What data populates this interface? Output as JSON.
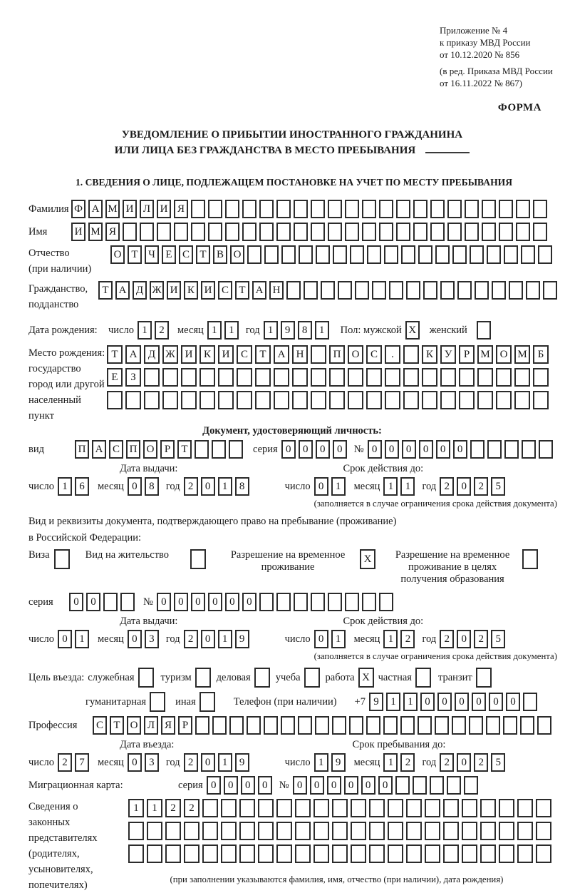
{
  "header": {
    "annex_lines": [
      "Приложение № 4",
      "к приказу МВД России",
      "от 10.12.2020 № 856"
    ],
    "edit_lines": [
      "(в ред. Приказа МВД России",
      "от 16.11.2022 № 867)"
    ],
    "form_label": "ФОРМА"
  },
  "title": {
    "line1": "УВЕДОМЛЕНИЕ О ПРИБЫТИИ ИНОСТРАННОГО ГРАЖДАНИНА",
    "line2": "ИЛИ ЛИЦА БЕЗ ГРАЖДАНСТВА В МЕСТО ПРЕБЫВАНИЯ"
  },
  "section1": {
    "heading": "1. СВЕДЕНИЯ О ЛИЦЕ, ПОДЛЕЖАЩЕМ ПОСТАНОВКЕ НА УЧЕТ ПО МЕСТУ ПРЕБЫВАНИЯ"
  },
  "date_words": {
    "day": "число",
    "month": "месяц",
    "year": "год"
  },
  "fields": {
    "surname": {
      "label": "Фамилия",
      "cells": "ФАМИЛИЯ",
      "total": 28
    },
    "name": {
      "label": "Имя",
      "cells": "ИМЯ",
      "total": 28
    },
    "patronymic": {
      "label": "Отчество",
      "label2": "(при наличии)",
      "cells": "ОТЧЕСТВО",
      "total": 26
    },
    "citizenship": {
      "label": "Гражданство,",
      "label2": "подданство",
      "cells": "ТАДЖИКИСТАН",
      "total": 27
    },
    "birth_date": {
      "label": "Дата рождения:",
      "day": "12",
      "month": "11",
      "year": "1981",
      "sex_label": "Пол: мужской",
      "male_box": "X",
      "female_label": "женский",
      "female_box": " "
    },
    "birth_place": {
      "label_lines": [
        "Место рождения:",
        "государство",
        "город или другой",
        "населенный пункт"
      ],
      "rows": [
        {
          "cells": "ТАДЖИКИСТАН ПОС. КУРМОМБ",
          "total": 24
        },
        {
          "cells": "ЕЗ",
          "total": 24
        },
        {
          "cells": "",
          "total": 24
        }
      ]
    }
  },
  "id_doc": {
    "heading": "Документ, удостоверяющий личность:",
    "kind_label": "вид",
    "kind": {
      "cells": "ПАСПОРТ",
      "total": 10
    },
    "series_label": "серия",
    "series": "0000",
    "number_label": "№",
    "number": {
      "cells": "000000",
      "total": 11
    },
    "issue_label": "Дата выдачи:",
    "issue": {
      "day": "16",
      "month": "08",
      "year": "2018"
    },
    "valid_label": "Срок действия до:",
    "valid": {
      "day": "01",
      "month": "11",
      "year": "2025"
    },
    "note": "(заполняется в случае ограничения срока действия документа)"
  },
  "res_doc": {
    "intro1": "Вид и реквизиты документа, подтверждающего право на пребывание (проживание)",
    "intro2": "в Российской Федерации:",
    "options": [
      {
        "label": "Виза",
        "box": " "
      },
      {
        "label": "Вид на жительство",
        "box": " "
      },
      {
        "label": "Разрешение на временное проживание",
        "box": "X"
      },
      {
        "label": "Разрешение на временное проживание в целях получения образования",
        "box": " "
      }
    ],
    "series_label": "серия",
    "series": {
      "cells": "00",
      "total": 4
    },
    "number_label": "№",
    "number": {
      "cells": "000000",
      "total": 14
    },
    "issue_label": "Дата выдачи:",
    "issue": {
      "day": "01",
      "month": "03",
      "year": "2019"
    },
    "valid_label": "Срок действия до:",
    "valid": {
      "day": "01",
      "month": "12",
      "year": "2025"
    },
    "note": "(заполняется в случае ограничения срока действия документа)"
  },
  "visit": {
    "label": "Цель въезда:",
    "purposes": [
      {
        "label": "служебная",
        "box": " "
      },
      {
        "label": "туризм",
        "box": " "
      },
      {
        "label": "деловая",
        "box": " "
      },
      {
        "label": "учеба",
        "box": " "
      },
      {
        "label": "работа",
        "box": "X"
      },
      {
        "label": "частная",
        "box": " "
      },
      {
        "label": "транзит",
        "box": " "
      }
    ],
    "purposes2": [
      {
        "label": "гуманитарная",
        "box": " "
      },
      {
        "label": "иная",
        "box": " "
      }
    ],
    "phone_label": "Телефон (при наличии)",
    "phone_prefix": "+7",
    "phone": {
      "cells": "911000000",
      "total": 10
    }
  },
  "profession": {
    "label": "Профессия",
    "cells": "СТОЛЯР",
    "total": 27
  },
  "entry": {
    "date_label": "Дата въезда:",
    "date": {
      "day": "27",
      "month": "03",
      "year": "2019"
    },
    "stay_label": "Срок пребывания до:",
    "stay": {
      "day": "19",
      "month": "12",
      "year": "2025"
    }
  },
  "migration_card": {
    "label": "Миграционная карта:",
    "series_label": "серия",
    "series": "0000",
    "number_label": "№",
    "number": {
      "cells": "000000",
      "total": 11
    }
  },
  "representatives": {
    "label_lines": [
      "Сведения о",
      "законных",
      "представителях",
      "(родителях,",
      "усыновителях,",
      "попечителях)"
    ],
    "rows": [
      {
        "cells": "1122",
        "total": 23
      },
      {
        "cells": "",
        "total": 23
      },
      {
        "cells": "",
        "total": 23
      }
    ],
    "note": "(при заполнении указываются фамилия, имя, отчество (при наличии), дата рождения)"
  }
}
